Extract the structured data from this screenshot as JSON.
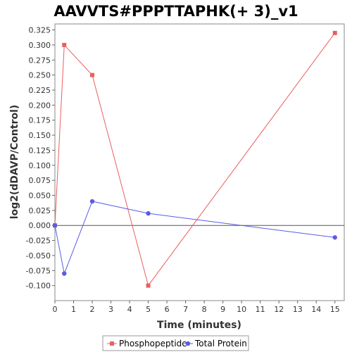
{
  "chart_data": {
    "type": "line",
    "title": "AAVVTS#PPPTTAPHK(+ 3)_v1",
    "xlabel": "Time (minutes)",
    "ylabel": "log2(dDAVP/Control)",
    "xlim": [
      0,
      15.5
    ],
    "ylim": [
      -0.125,
      0.335
    ],
    "x_ticks": [
      "0",
      "1",
      "2",
      "3",
      "4",
      "5",
      "6",
      "7",
      "8",
      "9",
      "10",
      "11",
      "12",
      "13",
      "14",
      "15"
    ],
    "y_ticks": [
      "0.325",
      "0.300",
      "0.275",
      "0.250",
      "0.225",
      "0.200",
      "0.175",
      "0.150",
      "0.125",
      "0.100",
      "0.075",
      "0.050",
      "0.025",
      "0.000",
      "-0.025",
      "-0.050",
      "-0.075",
      "-0.100"
    ],
    "zero_line": 0,
    "legend_position": "bottom",
    "series": [
      {
        "name": "Phosphopeptide",
        "color": "#e8605f",
        "marker": "square",
        "x": [
          0,
          0.5,
          2,
          5,
          15
        ],
        "y": [
          0.0,
          0.3,
          0.25,
          -0.1,
          0.32
        ]
      },
      {
        "name": "Total Protein",
        "color": "#5b5be6",
        "marker": "circle",
        "x": [
          0,
          0.5,
          2,
          5,
          15
        ],
        "y": [
          0.0,
          -0.08,
          0.04,
          0.02,
          -0.02
        ]
      }
    ]
  }
}
